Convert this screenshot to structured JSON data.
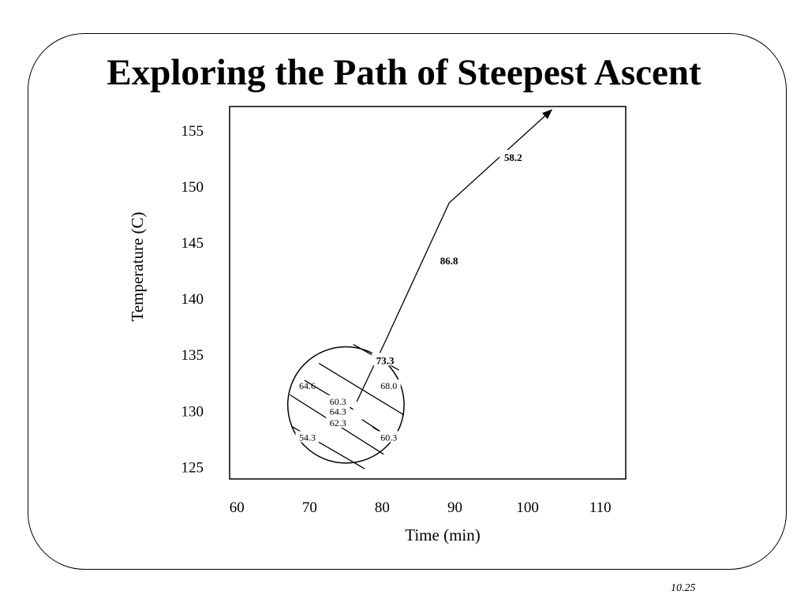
{
  "slide": {
    "title": "Exploring the Path of Steepest Ascent",
    "page_number": "10.25"
  },
  "chart_data": {
    "type": "scatter",
    "title": "Exploring the Path of Steepest Ascent",
    "xlabel": "Time (min)",
    "ylabel": "Temperature (C)",
    "x_ticks": [
      60,
      70,
      80,
      90,
      100,
      110
    ],
    "y_ticks": [
      125,
      130,
      135,
      140,
      145,
      150,
      155
    ],
    "xlim": [
      59,
      113.5
    ],
    "ylim": [
      123.9,
      157.1
    ],
    "grid": false,
    "region": {
      "center": [
        75,
        130.5
      ],
      "radius": 8
    },
    "contours": [
      {
        "label": "64.6",
        "x1": 71.3,
        "y1": 134.2,
        "x2": 83.0,
        "y2": 129.6,
        "lx": 69.7,
        "ly": 132.2
      },
      {
        "label": "68.0",
        "x1": 76.0,
        "y1": 135.9,
        "x2": 82.3,
        "y2": 133.6,
        "lx": 80.9,
        "ly": 132.2
      },
      {
        "label": "60.3",
        "x1": 69.3,
        "y1": 132.7,
        "x2": 76.0,
        "y2": 130.1,
        "lx": 73.9,
        "ly": 130.8
      },
      {
        "label": "64.3",
        "x1": 67.3,
        "y1": 131.4,
        "x2": 80.2,
        "y2": 126.1,
        "lx": 73.9,
        "ly": 129.9
      },
      {
        "label": "62.3",
        "x1": 77.2,
        "y1": 129.2,
        "x2": 81.5,
        "y2": 127.4,
        "lx": 73.9,
        "ly": 128.9
      },
      {
        "label": "54.3",
        "x1": 67.5,
        "y1": 128.6,
        "x2": 77.6,
        "y2": 124.8,
        "lx": 69.7,
        "ly": 127.6
      },
      {
        "label": "60.3",
        "x1": 78.7,
        "y1": 128.5,
        "x2": 82.2,
        "y2": 127.2,
        "lx": 80.9,
        "ly": 127.6
      }
    ],
    "ascent_path": {
      "points": [
        {
          "x": 76.5,
          "y": 130.8
        },
        {
          "x": 80.3,
          "y": 136.0
        },
        {
          "x": 89.2,
          "y": 148.5
        },
        {
          "x": 103.3,
          "y": 156.8
        }
      ],
      "labels": [
        {
          "text": "73.3",
          "x": 80.4,
          "y": 134.5
        },
        {
          "text": "86.8",
          "x": 89.2,
          "y": 143.4
        },
        {
          "text": "58.2",
          "x": 98.0,
          "y": 152.6
        }
      ]
    }
  }
}
